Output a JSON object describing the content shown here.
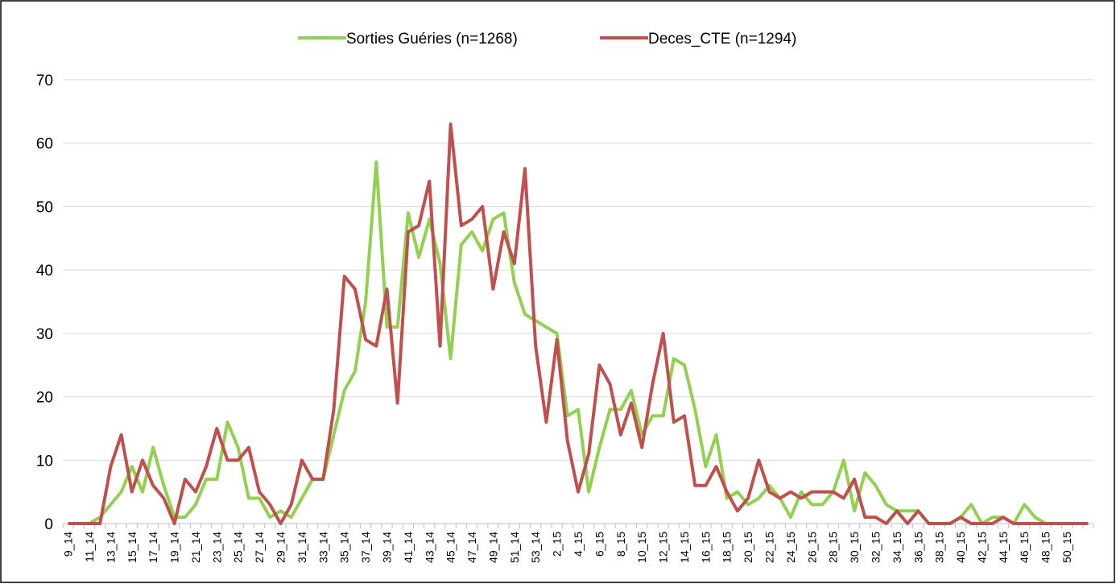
{
  "chart_data": {
    "type": "line",
    "categories": [
      "9_14",
      null,
      "11_14",
      null,
      "13_14",
      null,
      "15_14",
      null,
      "17_14",
      null,
      "19_14",
      null,
      "21_14",
      null,
      "23_14",
      null,
      "25_14",
      null,
      "27_14",
      null,
      "29_14",
      null,
      "31_14",
      null,
      "33_14",
      null,
      "35_14",
      null,
      "37_14",
      null,
      "39_14",
      null,
      "41_14",
      null,
      "43_14",
      null,
      "45_14",
      null,
      "47_14",
      null,
      "49_14",
      null,
      "51_14",
      null,
      "53_14",
      null,
      "2_15",
      null,
      "4_15",
      null,
      "6_15",
      null,
      "8_15",
      null,
      "10_15",
      null,
      "12_15",
      null,
      "14_15",
      null,
      "16_15",
      null,
      "18_15",
      null,
      "20_15",
      null,
      "22_15",
      null,
      "24_15",
      null,
      "26_15",
      null,
      "28_15",
      null,
      "30_15",
      null,
      "32_15",
      null,
      "34_15",
      null,
      "36_15",
      null,
      "38_15",
      null,
      "40_15",
      null,
      "42_15",
      null,
      "44_15",
      null,
      "46_15",
      null,
      "48_15",
      null,
      "50_15",
      null,
      null
    ],
    "series": [
      {
        "name": "Sorties Guéries (n=1268)",
        "color": "#92d050",
        "values": [
          0,
          0,
          0,
          1,
          3,
          5,
          9,
          5,
          12,
          6,
          1,
          1,
          3,
          7,
          7,
          16,
          12,
          4,
          4,
          1,
          2,
          1,
          4,
          7,
          7,
          14,
          21,
          24,
          35,
          57,
          31,
          31,
          49,
          42,
          48,
          41,
          26,
          44,
          46,
          43,
          48,
          49,
          38,
          33,
          32,
          31,
          30,
          17,
          18,
          5,
          12,
          18,
          18,
          21,
          14,
          17,
          17,
          26,
          25,
          18,
          9,
          14,
          4,
          5,
          3,
          4,
          6,
          4,
          1,
          5,
          3,
          3,
          5,
          10,
          2,
          8,
          6,
          3,
          2,
          2,
          2,
          0,
          0,
          0,
          1,
          3,
          0,
          1,
          1,
          0,
          3,
          1,
          0,
          0,
          0,
          0,
          0
        ]
      },
      {
        "name": "Deces_CTE (n=1294)",
        "color": "#c0504d",
        "values": [
          0,
          0,
          0,
          0,
          9,
          14,
          5,
          10,
          6,
          4,
          0,
          7,
          5,
          9,
          15,
          10,
          10,
          12,
          5,
          3,
          0,
          3,
          10,
          7,
          7,
          18,
          39,
          37,
          29,
          28,
          37,
          19,
          46,
          47,
          54,
          28,
          63,
          47,
          48,
          50,
          37,
          46,
          41,
          56,
          28,
          16,
          29,
          13,
          5,
          11,
          25,
          22,
          14,
          19,
          12,
          22,
          30,
          16,
          17,
          6,
          6,
          9,
          5,
          2,
          4,
          10,
          5,
          4,
          5,
          4,
          5,
          5,
          5,
          4,
          7,
          1,
          1,
          0,
          2,
          0,
          2,
          0,
          0,
          0,
          1,
          0,
          0,
          0,
          1,
          0,
          0,
          0,
          0,
          0,
          0,
          0,
          0
        ]
      }
    ],
    "ylim": [
      0,
      70
    ],
    "yticks": [
      0,
      10,
      20,
      30,
      40,
      50,
      60,
      70
    ],
    "grid": true,
    "legend": "top"
  }
}
